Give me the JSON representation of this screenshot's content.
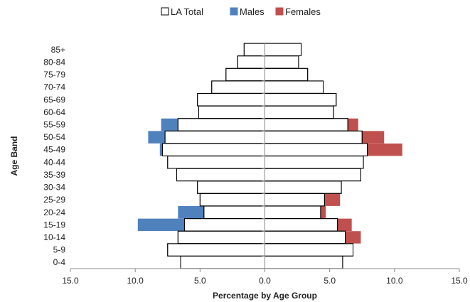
{
  "chart_data": {
    "type": "bar",
    "orientation": "horizontal",
    "subtype": "population-pyramid",
    "title": "",
    "xlabel": "Percentage by Age Group",
    "ylabel": "Age Band",
    "xlim": [
      -15,
      15
    ],
    "x_ticks": [
      "15.0",
      "10.0",
      "5.0",
      "0.0",
      "5.0",
      "10.0",
      "15.0"
    ],
    "x_tick_values": [
      -15,
      -10,
      -5,
      0,
      5,
      10,
      15
    ],
    "grid": false,
    "legend_position": "top",
    "categories": [
      "0-4",
      "5-9",
      "10-14",
      "15-19",
      "20-24",
      "25-29",
      "30-34",
      "35-39",
      "40-44",
      "45-49",
      "50-54",
      "55-59",
      "60-64",
      "65-69",
      "70-74",
      "75-79",
      "80-84",
      "85+"
    ],
    "series": [
      {
        "name": "Males",
        "color": "#4f81bd",
        "side": "left",
        "values": [
          5.7,
          6.0,
          6.7,
          9.8,
          6.7,
          3.6,
          4.2,
          4.6,
          7.2,
          8.1,
          9.0,
          8.0,
          4.9,
          4.8,
          4.1,
          2.8,
          2.1,
          1.3
        ]
      },
      {
        "name": "Females",
        "color": "#c0504d",
        "side": "right",
        "values": [
          5.4,
          5.8,
          7.4,
          6.7,
          4.7,
          5.8,
          4.7,
          5.2,
          7.4,
          10.6,
          9.2,
          7.2,
          5.2,
          4.4,
          4.2,
          2.5,
          2.3,
          1.3
        ]
      },
      {
        "name": "LA Total",
        "color": "#ffffff",
        "border": "#000000",
        "style": "outline",
        "male_values": [
          6.5,
          7.5,
          6.7,
          6.2,
          4.7,
          5.0,
          5.2,
          6.8,
          7.5,
          7.9,
          7.7,
          6.7,
          5.1,
          5.2,
          4.1,
          3.0,
          2.1,
          1.6
        ],
        "female_values": [
          6.0,
          6.8,
          6.2,
          5.6,
          4.3,
          4.6,
          5.9,
          7.4,
          7.6,
          7.9,
          7.5,
          6.4,
          5.3,
          5.5,
          4.5,
          3.3,
          2.6,
          2.8
        ]
      }
    ]
  },
  "legend": [
    {
      "label": "LA Total",
      "color": "#ffffff",
      "border": "#000000"
    },
    {
      "label": "Males",
      "color": "#4f81bd",
      "border": "#4f81bd"
    },
    {
      "label": "Females",
      "color": "#c0504d",
      "border": "#c0504d"
    }
  ]
}
